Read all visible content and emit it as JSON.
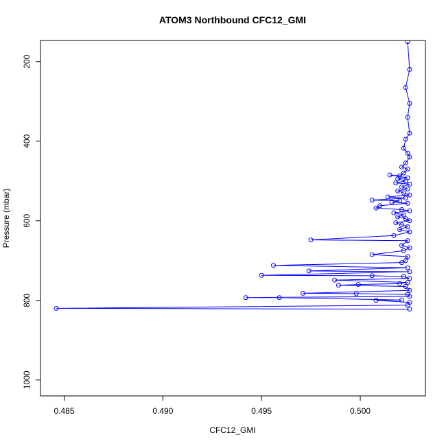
{
  "chart_data": {
    "type": "line",
    "title": "ATOM3 Northbound CFC12_GMI",
    "xlabel": "CFC12_GMI",
    "ylabel": "Pressure (mbar)",
    "xlim": [
      0.4838,
      0.5033
    ],
    "ylim": [
      1040,
      147
    ],
    "y_reversed": true,
    "x_ticks": [
      0.485,
      0.49,
      0.495,
      0.5
    ],
    "x_tick_labels": [
      "0.485",
      "0.490",
      "0.495",
      "0.500"
    ],
    "y_ticks": [
      200,
      400,
      600,
      800,
      1000
    ],
    "y_tick_labels": [
      "200",
      "400",
      "600",
      "800",
      "1000"
    ],
    "grid": false,
    "series": [
      {
        "color": "#0000ff",
        "marker": "open-circle",
        "points": [
          {
            "x": 0.5024,
            "y": 150
          },
          {
            "x": 0.5025,
            "y": 220
          },
          {
            "x": 0.5023,
            "y": 265
          },
          {
            "x": 0.5025,
            "y": 305
          },
          {
            "x": 0.5024,
            "y": 340
          },
          {
            "x": 0.5025,
            "y": 380
          },
          {
            "x": 0.5023,
            "y": 395
          },
          {
            "x": 0.5022,
            "y": 418
          },
          {
            "x": 0.5024,
            "y": 430
          },
          {
            "x": 0.5025,
            "y": 440
          },
          {
            "x": 0.5023,
            "y": 455
          },
          {
            "x": 0.5021,
            "y": 465
          },
          {
            "x": 0.5024,
            "y": 470
          },
          {
            "x": 0.5022,
            "y": 480
          },
          {
            "x": 0.502,
            "y": 487
          },
          {
            "x": 0.5015,
            "y": 485
          },
          {
            "x": 0.5024,
            "y": 492
          },
          {
            "x": 0.5019,
            "y": 495
          },
          {
            "x": 0.5023,
            "y": 500
          },
          {
            "x": 0.5018,
            "y": 505
          },
          {
            "x": 0.5025,
            "y": 508
          },
          {
            "x": 0.5021,
            "y": 515
          },
          {
            "x": 0.5024,
            "y": 520
          },
          {
            "x": 0.5019,
            "y": 525
          },
          {
            "x": 0.5022,
            "y": 530
          },
          {
            "x": 0.5025,
            "y": 535
          },
          {
            "x": 0.5014,
            "y": 540
          },
          {
            "x": 0.5023,
            "y": 543
          },
          {
            "x": 0.5006,
            "y": 548
          },
          {
            "x": 0.502,
            "y": 550
          },
          {
            "x": 0.5016,
            "y": 553
          },
          {
            "x": 0.5024,
            "y": 556
          },
          {
            "x": 0.501,
            "y": 562
          },
          {
            "x": 0.5008,
            "y": 568
          },
          {
            "x": 0.5021,
            "y": 572
          },
          {
            "x": 0.5025,
            "y": 575
          },
          {
            "x": 0.5017,
            "y": 580
          },
          {
            "x": 0.5022,
            "y": 585
          },
          {
            "x": 0.5019,
            "y": 590
          },
          {
            "x": 0.5023,
            "y": 595
          },
          {
            "x": 0.5025,
            "y": 600
          },
          {
            "x": 0.5018,
            "y": 605
          },
          {
            "x": 0.5021,
            "y": 610
          },
          {
            "x": 0.5024,
            "y": 615
          },
          {
            "x": 0.502,
            "y": 622
          },
          {
            "x": 0.5025,
            "y": 628
          },
          {
            "x": 0.5017,
            "y": 637
          },
          {
            "x": 0.4975,
            "y": 648
          },
          {
            "x": 0.5024,
            "y": 650
          },
          {
            "x": 0.5021,
            "y": 662
          },
          {
            "x": 0.5025,
            "y": 668
          },
          {
            "x": 0.5022,
            "y": 675
          },
          {
            "x": 0.5006,
            "y": 685
          },
          {
            "x": 0.5024,
            "y": 690
          },
          {
            "x": 0.5023,
            "y": 700
          },
          {
            "x": 0.5021,
            "y": 705
          },
          {
            "x": 0.4956,
            "y": 712
          },
          {
            "x": 0.5024,
            "y": 718
          },
          {
            "x": 0.4974,
            "y": 726
          },
          {
            "x": 0.5025,
            "y": 728
          },
          {
            "x": 0.495,
            "y": 737
          },
          {
            "x": 0.5006,
            "y": 738
          },
          {
            "x": 0.5022,
            "y": 740
          },
          {
            "x": 0.5025,
            "y": 745
          },
          {
            "x": 0.4987,
            "y": 749
          },
          {
            "x": 0.5024,
            "y": 755
          },
          {
            "x": 0.502,
            "y": 758
          },
          {
            "x": 0.4999,
            "y": 760
          },
          {
            "x": 0.4989,
            "y": 762
          },
          {
            "x": 0.5023,
            "y": 765
          },
          {
            "x": 0.5025,
            "y": 775
          },
          {
            "x": 0.4971,
            "y": 782
          },
          {
            "x": 0.4998,
            "y": 783
          },
          {
            "x": 0.5024,
            "y": 785
          },
          {
            "x": 0.5025,
            "y": 790
          },
          {
            "x": 0.4942,
            "y": 793
          },
          {
            "x": 0.4959,
            "y": 793
          },
          {
            "x": 0.5021,
            "y": 799
          },
          {
            "x": 0.5008,
            "y": 800
          },
          {
            "x": 0.5025,
            "y": 805
          },
          {
            "x": 0.5024,
            "y": 812
          },
          {
            "x": 0.4846,
            "y": 820
          },
          {
            "x": 0.5025,
            "y": 822
          }
        ]
      }
    ]
  }
}
